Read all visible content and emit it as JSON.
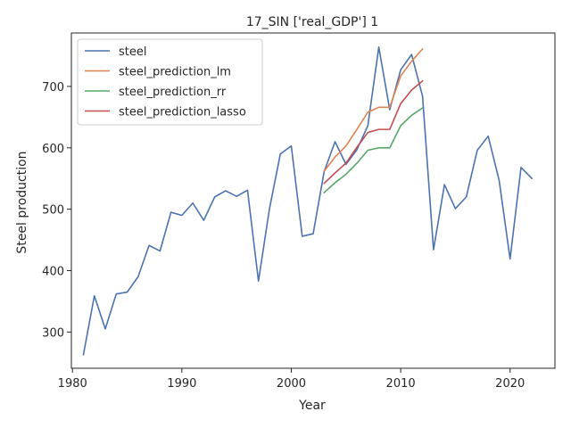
{
  "chart_data": {
    "type": "line",
    "title": "17_SIN ['real_GDP'] 1",
    "xlabel": "Year",
    "ylabel": "Steel production",
    "xlim": [
      1979.9,
      2024.1
    ],
    "ylim": [
      241,
      787
    ],
    "xticks": [
      1980,
      1990,
      2000,
      2010,
      2020
    ],
    "yticks": [
      300,
      400,
      500,
      600,
      700
    ],
    "grid": false,
    "legend_position": "top-left",
    "series": [
      {
        "name": "steel",
        "color": "#4c72b0",
        "x": [
          1981,
          1982,
          1983,
          1984,
          1985,
          1986,
          1987,
          1988,
          1989,
          1990,
          1991,
          1992,
          1993,
          1994,
          1995,
          1996,
          1997,
          1998,
          1999,
          2000,
          2001,
          2002,
          2003,
          2004,
          2005,
          2006,
          2007,
          2008,
          2009,
          2010,
          2011,
          2012,
          2013,
          2014,
          2015,
          2016,
          2017,
          2018,
          2019,
          2020,
          2021,
          2022
        ],
        "y": [
          263,
          359,
          305,
          362,
          365,
          390,
          441,
          432,
          495,
          490,
          510,
          482,
          520,
          530,
          521,
          531,
          383,
          500,
          590,
          603,
          456,
          460,
          561,
          610,
          573,
          597,
          636,
          764,
          662,
          727,
          752,
          684,
          434,
          540,
          501,
          520,
          596,
          619,
          547,
          419,
          568,
          550
        ]
      },
      {
        "name": "steel_prediction_lm",
        "color": "#dd8452",
        "x": [
          2003,
          2004,
          2005,
          2006,
          2007,
          2008,
          2009,
          2010,
          2011,
          2012
        ],
        "y": [
          562,
          585,
          603,
          630,
          658,
          666,
          666,
          717,
          741,
          761
        ]
      },
      {
        "name": "steel_prediction_rr",
        "color": "#55a868",
        "x": [
          2003,
          2004,
          2005,
          2006,
          2007,
          2008,
          2009,
          2010,
          2011,
          2012
        ],
        "y": [
          527,
          543,
          557,
          575,
          596,
          600,
          600,
          636,
          653,
          665
        ]
      },
      {
        "name": "steel_prediction_lasso",
        "color": "#c44e52",
        "x": [
          2003,
          2004,
          2005,
          2006,
          2007,
          2008,
          2009,
          2010,
          2011,
          2012
        ],
        "y": [
          542,
          559,
          575,
          601,
          625,
          630,
          630,
          672,
          694,
          709
        ]
      }
    ]
  }
}
